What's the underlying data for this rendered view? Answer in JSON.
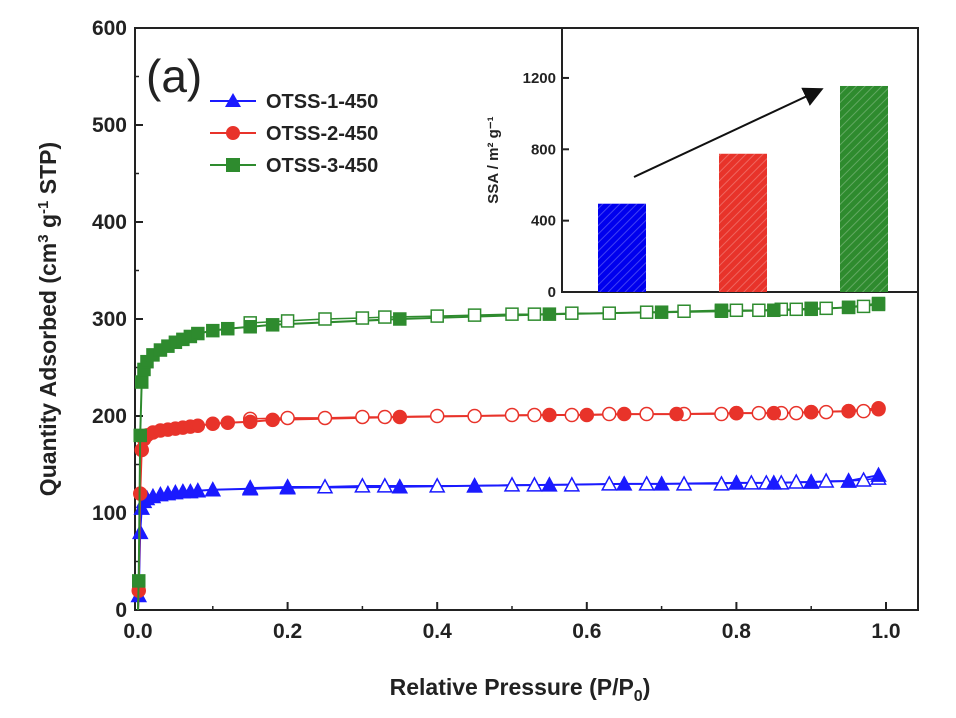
{
  "panel_label": "(a)",
  "chart_data": [
    {
      "type": "line",
      "xlabel": {
        "pre": "Relative Pressure (P/P",
        "sub": "0",
        "post": ")"
      },
      "ylabel": {
        "pre": "Quantity Adsorbed (cm",
        "sup1": "3",
        "mid": " g",
        "sup2": "-1",
        "post": " STP)"
      },
      "xlim": [
        0.0,
        1.0
      ],
      "ylim": [
        0,
        600
      ],
      "xticks": [
        "0.0",
        "0.2",
        "0.4",
        "0.6",
        "0.8",
        "1.0"
      ],
      "yticks": [
        "0",
        "100",
        "200",
        "300",
        "400",
        "500",
        "600"
      ],
      "legend_position": "top-left",
      "series": [
        {
          "name": "OTSS-1-450",
          "color": "#1a1aff",
          "marker": "triangle",
          "adsorption": [
            [
              0.001,
              15
            ],
            [
              0.003,
              80
            ],
            [
              0.005,
              105
            ],
            [
              0.008,
              112
            ],
            [
              0.012,
              115
            ],
            [
              0.02,
              117
            ],
            [
              0.03,
              119
            ],
            [
              0.04,
              120
            ],
            [
              0.05,
              121
            ],
            [
              0.06,
              122
            ],
            [
              0.07,
              122
            ],
            [
              0.08,
              123
            ],
            [
              0.1,
              124
            ],
            [
              0.15,
              125
            ],
            [
              0.2,
              126
            ],
            [
              0.35,
              127
            ],
            [
              0.45,
              128
            ],
            [
              0.55,
              129
            ],
            [
              0.65,
              130
            ],
            [
              0.7,
              130
            ],
            [
              0.8,
              131
            ],
            [
              0.85,
              131
            ],
            [
              0.9,
              132
            ],
            [
              0.95,
              133
            ],
            [
              0.99,
              139
            ]
          ],
          "desorption": [
            [
              0.99,
              136
            ],
            [
              0.97,
              134
            ],
            [
              0.95,
              133
            ],
            [
              0.92,
              133
            ],
            [
              0.9,
              132
            ],
            [
              0.88,
              132
            ],
            [
              0.86,
              131
            ],
            [
              0.84,
              131
            ],
            [
              0.82,
              131
            ],
            [
              0.8,
              131
            ],
            [
              0.78,
              130
            ],
            [
              0.73,
              130
            ],
            [
              0.68,
              130
            ],
            [
              0.63,
              130
            ],
            [
              0.58,
              129
            ],
            [
              0.53,
              129
            ],
            [
              0.5,
              129
            ],
            [
              0.45,
              128
            ],
            [
              0.4,
              128
            ],
            [
              0.33,
              128
            ],
            [
              0.3,
              128
            ],
            [
              0.25,
              127
            ],
            [
              0.2,
              127
            ],
            [
              0.15,
              126
            ]
          ]
        },
        {
          "name": "OTSS-2-450",
          "color": "#e8332a",
          "marker": "circle",
          "adsorption": [
            [
              0.001,
              20
            ],
            [
              0.003,
              120
            ],
            [
              0.005,
              165
            ],
            [
              0.008,
              176
            ],
            [
              0.012,
              180
            ],
            [
              0.02,
              183
            ],
            [
              0.03,
              185
            ],
            [
              0.04,
              186
            ],
            [
              0.05,
              187
            ],
            [
              0.06,
              188
            ],
            [
              0.07,
              189
            ],
            [
              0.08,
              190
            ],
            [
              0.1,
              192
            ],
            [
              0.12,
              193
            ],
            [
              0.15,
              194
            ],
            [
              0.18,
              196
            ],
            [
              0.35,
              199
            ],
            [
              0.55,
              201
            ],
            [
              0.6,
              201
            ],
            [
              0.65,
              202
            ],
            [
              0.72,
              202
            ],
            [
              0.8,
              203
            ],
            [
              0.85,
              203
            ],
            [
              0.9,
              204
            ],
            [
              0.95,
              205
            ],
            [
              0.99,
              208
            ]
          ],
          "desorption": [
            [
              0.99,
              207
            ],
            [
              0.97,
              205
            ],
            [
              0.95,
              205
            ],
            [
              0.92,
              204
            ],
            [
              0.9,
              204
            ],
            [
              0.88,
              203
            ],
            [
              0.86,
              203
            ],
            [
              0.83,
              203
            ],
            [
              0.8,
              203
            ],
            [
              0.78,
              202
            ],
            [
              0.73,
              202
            ],
            [
              0.68,
              202
            ],
            [
              0.63,
              202
            ],
            [
              0.58,
              201
            ],
            [
              0.53,
              201
            ],
            [
              0.5,
              201
            ],
            [
              0.45,
              200
            ],
            [
              0.4,
              200
            ],
            [
              0.33,
              199
            ],
            [
              0.3,
              199
            ],
            [
              0.25,
              198
            ],
            [
              0.2,
              198
            ],
            [
              0.15,
              197
            ]
          ]
        },
        {
          "name": "OTSS-3-450",
          "color": "#2e8b2e",
          "marker": "square",
          "adsorption": [
            [
              0.001,
              30
            ],
            [
              0.003,
              180
            ],
            [
              0.005,
              235
            ],
            [
              0.008,
              248
            ],
            [
              0.012,
              256
            ],
            [
              0.02,
              263
            ],
            [
              0.03,
              268
            ],
            [
              0.04,
              272
            ],
            [
              0.05,
              276
            ],
            [
              0.06,
              279
            ],
            [
              0.07,
              282
            ],
            [
              0.08,
              285
            ],
            [
              0.1,
              288
            ],
            [
              0.12,
              290
            ],
            [
              0.15,
              292
            ],
            [
              0.18,
              294
            ],
            [
              0.35,
              300
            ],
            [
              0.55,
              305
            ],
            [
              0.7,
              307
            ],
            [
              0.78,
              308
            ],
            [
              0.85,
              309
            ],
            [
              0.9,
              310
            ],
            [
              0.95,
              312
            ],
            [
              0.99,
              316
            ]
          ],
          "desorption": [
            [
              0.99,
              315
            ],
            [
              0.97,
              313
            ],
            [
              0.95,
              312
            ],
            [
              0.92,
              311
            ],
            [
              0.9,
              311
            ],
            [
              0.88,
              310
            ],
            [
              0.86,
              310
            ],
            [
              0.83,
              309
            ],
            [
              0.8,
              309
            ],
            [
              0.78,
              309
            ],
            [
              0.73,
              308
            ],
            [
              0.68,
              307
            ],
            [
              0.63,
              306
            ],
            [
              0.58,
              306
            ],
            [
              0.53,
              305
            ],
            [
              0.5,
              305
            ],
            [
              0.45,
              304
            ],
            [
              0.4,
              303
            ],
            [
              0.33,
              302
            ],
            [
              0.3,
              301
            ],
            [
              0.25,
              300
            ],
            [
              0.2,
              298
            ],
            [
              0.15,
              296
            ]
          ]
        }
      ]
    },
    {
      "type": "bar",
      "ylabel": "SSA / m² g⁻¹",
      "ylim": [
        0,
        1480
      ],
      "yticks": [
        "0",
        "400",
        "800",
        "1200"
      ],
      "categories": [
        "OTSS-1-450",
        "OTSS-2-450",
        "OTSS-3-450"
      ],
      "values": [
        495,
        775,
        1155
      ],
      "colors": [
        "#0000ee",
        "#e8332a",
        "#2e8b2e"
      ],
      "annotation": "arrow showing increasing SSA"
    }
  ]
}
